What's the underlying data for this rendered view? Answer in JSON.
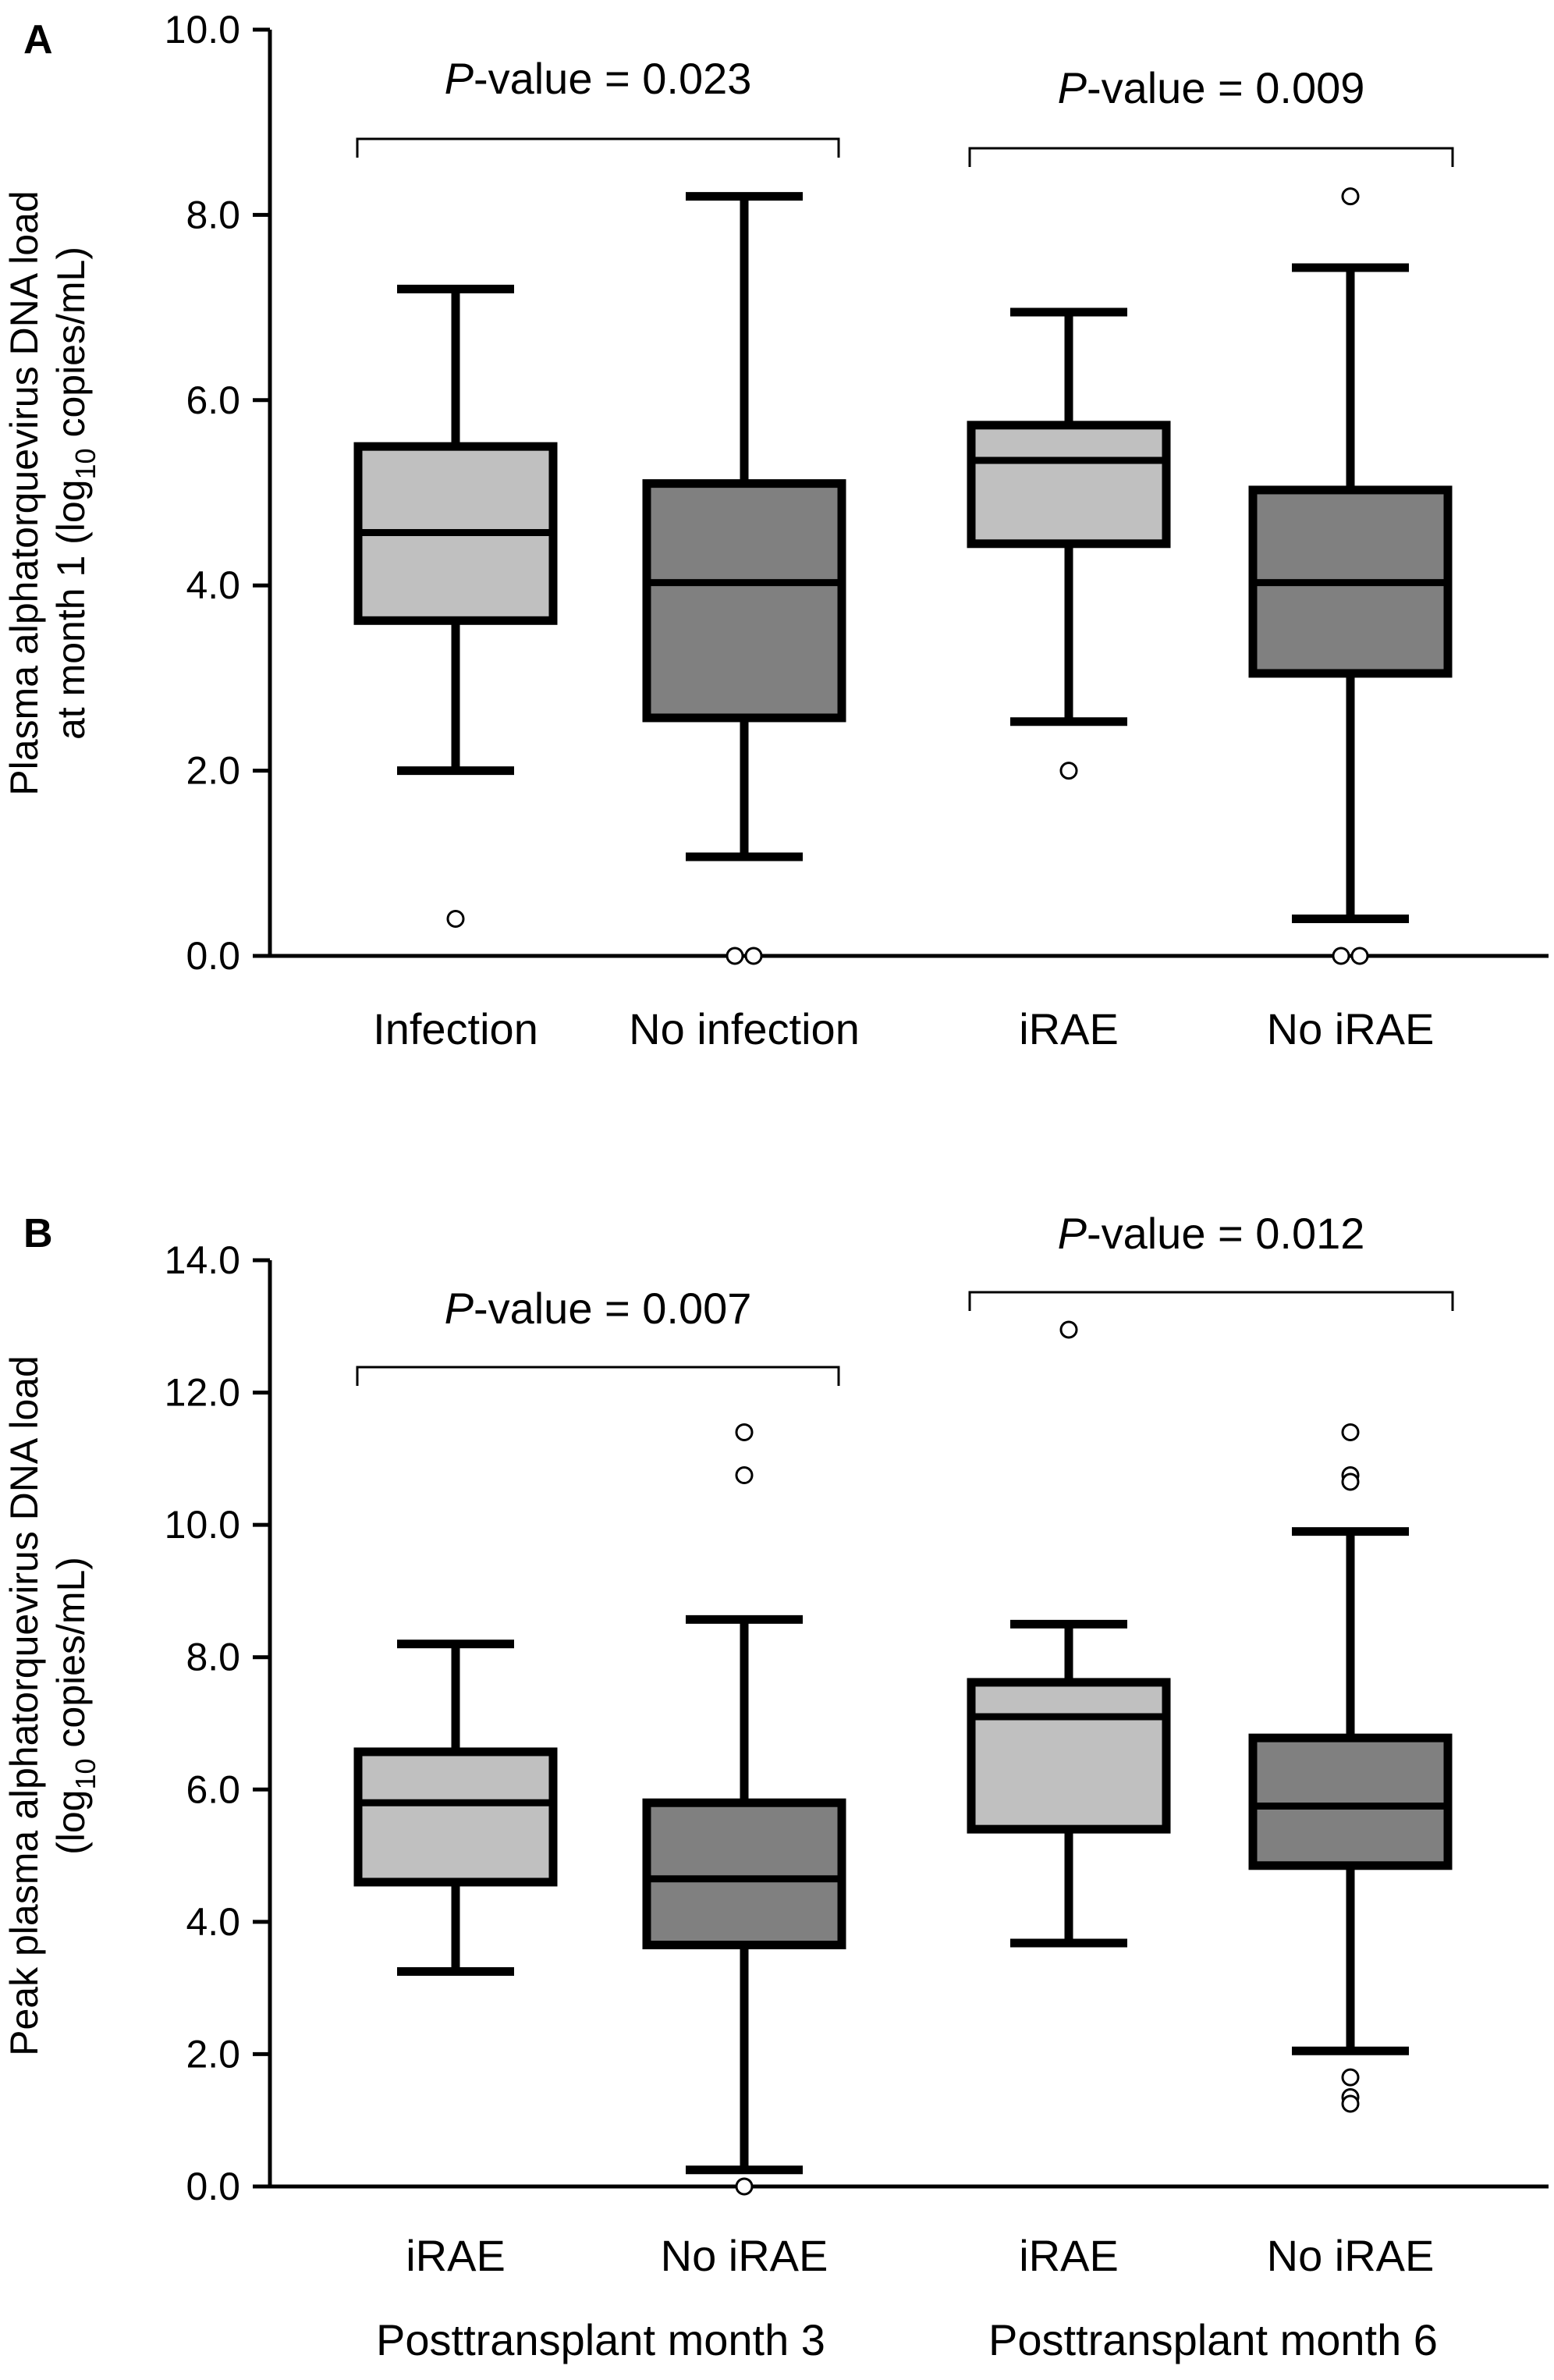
{
  "chart_data": [
    {
      "type": "box",
      "panel": "A",
      "ylabel": {
        "pre": "Plasma alphatorquevirus DNA load",
        "line2_pre": "at month 1 (log",
        "sub": "10",
        "post": " copies/mL)"
      },
      "ylim": [
        0,
        10
      ],
      "yticks": [
        0,
        2,
        4,
        6,
        8,
        10
      ],
      "tick_labels": [
        "0.0",
        "2.0",
        "4.0",
        "6.0",
        "8.0",
        "10.0"
      ],
      "categories": [
        "Infection",
        "No infection",
        "iRAE",
        "No iRAE"
      ],
      "boxes": [
        {
          "name": "Infection",
          "min": 2.0,
          "q1": 3.62,
          "median": 4.57,
          "q3": 5.5,
          "max": 7.2,
          "outliers": [
            0.4
          ],
          "fill": "#c0c0c0"
        },
        {
          "name": "No infection",
          "min": 1.07,
          "q1": 2.57,
          "median": 4.03,
          "q3": 5.1,
          "max": 8.2,
          "outliers": [
            0.0,
            0.0
          ],
          "fill": "#808080"
        },
        {
          "name": "iRAE",
          "min": 2.53,
          "q1": 4.45,
          "median": 5.35,
          "q3": 5.73,
          "max": 6.95,
          "outliers": [
            2.0
          ],
          "fill": "#c0c0c0"
        },
        {
          "name": "No iRAE",
          "min": 0.4,
          "q1": 3.05,
          "median": 4.03,
          "q3": 5.03,
          "max": 7.43,
          "outliers": [
            8.2,
            0.0,
            0.0
          ],
          "fill": "#808080"
        }
      ],
      "comparisons": [
        {
          "pre": "P",
          "label": "-value = 0.023",
          "between": [
            0,
            1
          ]
        },
        {
          "pre": "P",
          "label": "-value = 0.009",
          "between": [
            2,
            3
          ]
        }
      ],
      "grid": false
    },
    {
      "type": "box",
      "panel": "B",
      "ylabel": {
        "pre": "Peak plasma alphatorquevirus DNA load",
        "line2_pre": "(log",
        "sub": "10",
        "post": " copies/mL)"
      },
      "ylim": [
        0,
        14
      ],
      "yticks": [
        0,
        2,
        4,
        6,
        8,
        10,
        12,
        14
      ],
      "tick_labels": [
        "0.0",
        "2.0",
        "4.0",
        "6.0",
        "8.0",
        "10.0",
        "12.0",
        "14.0"
      ],
      "categories": [
        "iRAE",
        "No iRAE",
        "iRAE",
        "No iRAE"
      ],
      "groups": [
        "Posttransplant month 3",
        "Posttransplant month 6"
      ],
      "boxes": [
        {
          "name": "iRAE",
          "min": 3.25,
          "q1": 4.6,
          "median": 5.8,
          "q3": 6.57,
          "max": 8.2,
          "outliers": [],
          "fill": "#c0c0c0"
        },
        {
          "name": "No iRAE",
          "min": 0.25,
          "q1": 3.65,
          "median": 4.65,
          "q3": 5.8,
          "max": 8.57,
          "outliers": [
            11.4,
            10.75,
            0.0
          ],
          "fill": "#808080"
        },
        {
          "name": "iRAE",
          "min": 3.68,
          "q1": 5.4,
          "median": 7.1,
          "q3": 7.62,
          "max": 8.5,
          "outliers": [
            12.95
          ],
          "fill": "#c0c0c0"
        },
        {
          "name": "No iRAE",
          "min": 2.05,
          "q1": 4.85,
          "median": 5.75,
          "q3": 6.78,
          "max": 9.9,
          "outliers": [
            11.4,
            10.75,
            10.65,
            1.65,
            1.35,
            1.25
          ],
          "fill": "#808080"
        }
      ],
      "comparisons": [
        {
          "pre": "P",
          "label": "-value = 0.007",
          "between": [
            0,
            1
          ]
        },
        {
          "pre": "P",
          "label": "-value = 0.012",
          "between": [
            2,
            3
          ]
        }
      ],
      "grid": false
    }
  ]
}
